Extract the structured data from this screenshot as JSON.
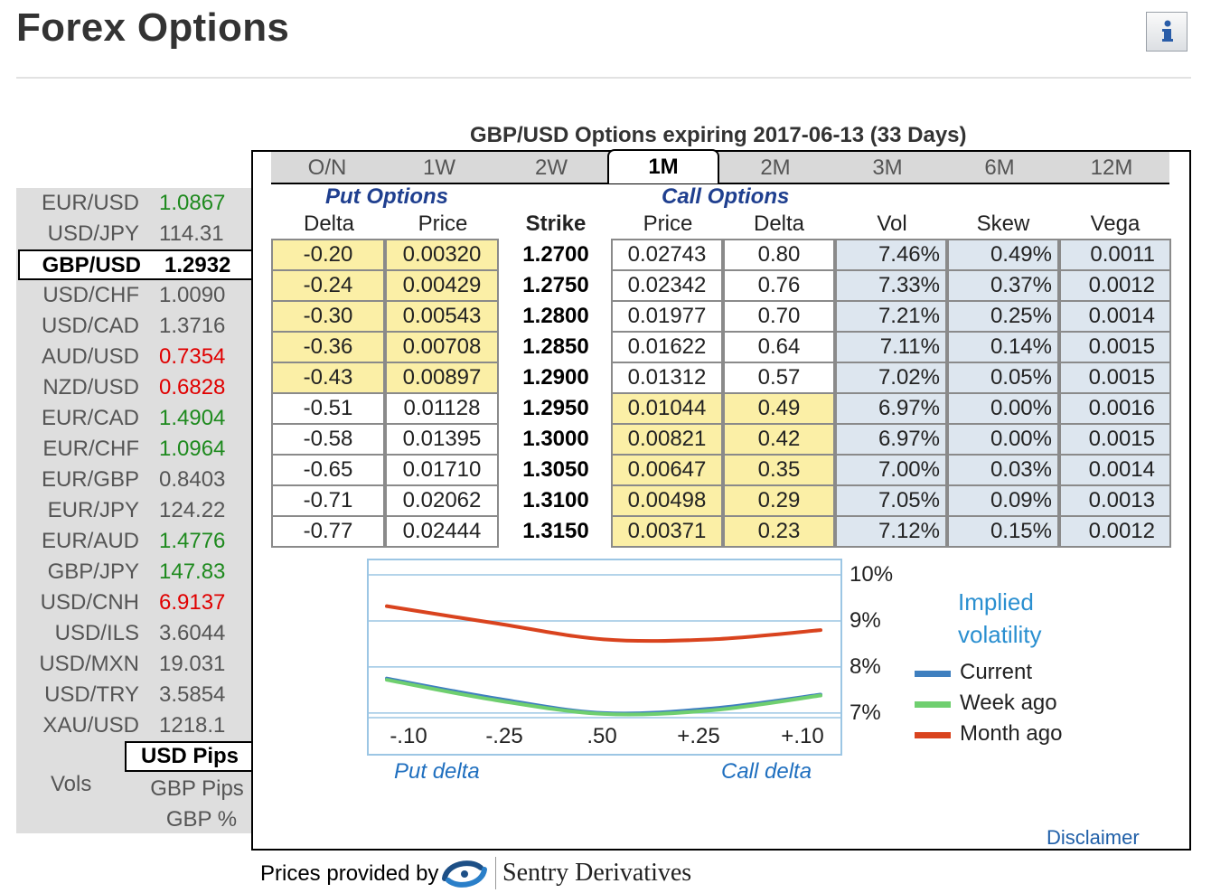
{
  "page_title": "Forex Options",
  "sidebar": {
    "pairs": [
      {
        "name": "EUR/USD",
        "value": "1.0867",
        "dir": "up"
      },
      {
        "name": "USD/JPY",
        "value": "114.31",
        "dir": "flat"
      },
      {
        "name": "GBP/USD",
        "value": "1.2932",
        "dir": "sel"
      },
      {
        "name": "USD/CHF",
        "value": "1.0090",
        "dir": "flat"
      },
      {
        "name": "USD/CAD",
        "value": "1.3716",
        "dir": "flat"
      },
      {
        "name": "AUD/USD",
        "value": "0.7354",
        "dir": "down"
      },
      {
        "name": "NZD/USD",
        "value": "0.6828",
        "dir": "down"
      },
      {
        "name": "EUR/CAD",
        "value": "1.4904",
        "dir": "up"
      },
      {
        "name": "EUR/CHF",
        "value": "1.0964",
        "dir": "up"
      },
      {
        "name": "EUR/GBP",
        "value": "0.8403",
        "dir": "flat"
      },
      {
        "name": "EUR/JPY",
        "value": "124.22",
        "dir": "flat"
      },
      {
        "name": "EUR/AUD",
        "value": "1.4776",
        "dir": "up"
      },
      {
        "name": "GBP/JPY",
        "value": "147.83",
        "dir": "up"
      },
      {
        "name": "USD/CNH",
        "value": "6.9137",
        "dir": "down"
      },
      {
        "name": "USD/ILS",
        "value": "3.6044",
        "dir": "flat"
      },
      {
        "name": "USD/MXN",
        "value": "19.031",
        "dir": "flat"
      },
      {
        "name": "USD/TRY",
        "value": "3.5854",
        "dir": "flat"
      },
      {
        "name": "XAU/USD",
        "value": "1218.1",
        "dir": "flat"
      }
    ],
    "units": [
      "USD Pips",
      "GBP Pips",
      "GBP %"
    ],
    "vols_label": "Vols"
  },
  "panel": {
    "title": "GBP/USD Options expiring 2017-06-13 (33 Days)",
    "tabs": [
      "O/N",
      "1W",
      "2W",
      "1M",
      "2M",
      "3M",
      "6M",
      "12M"
    ],
    "active_tab": "1M",
    "put_label": "Put Options",
    "call_label": "Call Options",
    "headers": {
      "delta": "Delta",
      "price": "Price",
      "strike": "Strike",
      "c_price": "Price",
      "c_delta": "Delta",
      "vol": "Vol",
      "skew": "Skew",
      "vega": "Vega"
    },
    "rows": [
      {
        "pd": "-0.20",
        "pp": "0.00320",
        "k": "1.2700",
        "cp": "0.02743",
        "cd": "0.80",
        "vol": "7.46%",
        "skew": "0.49%",
        "vega": "0.0011",
        "itm": "put"
      },
      {
        "pd": "-0.24",
        "pp": "0.00429",
        "k": "1.2750",
        "cp": "0.02342",
        "cd": "0.76",
        "vol": "7.33%",
        "skew": "0.37%",
        "vega": "0.0012",
        "itm": "put"
      },
      {
        "pd": "-0.30",
        "pp": "0.00543",
        "k": "1.2800",
        "cp": "0.01977",
        "cd": "0.70",
        "vol": "7.21%",
        "skew": "0.25%",
        "vega": "0.0014",
        "itm": "put"
      },
      {
        "pd": "-0.36",
        "pp": "0.00708",
        "k": "1.2850",
        "cp": "0.01622",
        "cd": "0.64",
        "vol": "7.11%",
        "skew": "0.14%",
        "vega": "0.0015",
        "itm": "put"
      },
      {
        "pd": "-0.43",
        "pp": "0.00897",
        "k": "1.2900",
        "cp": "0.01312",
        "cd": "0.57",
        "vol": "7.02%",
        "skew": "0.05%",
        "vega": "0.0015",
        "itm": "put"
      },
      {
        "pd": "-0.51",
        "pp": "0.01128",
        "k": "1.2950",
        "cp": "0.01044",
        "cd": "0.49",
        "vol": "6.97%",
        "skew": "0.00%",
        "vega": "0.0016",
        "itm": "call"
      },
      {
        "pd": "-0.58",
        "pp": "0.01395",
        "k": "1.3000",
        "cp": "0.00821",
        "cd": "0.42",
        "vol": "6.97%",
        "skew": "0.00%",
        "vega": "0.0015",
        "itm": "call"
      },
      {
        "pd": "-0.65",
        "pp": "0.01710",
        "k": "1.3050",
        "cp": "0.00647",
        "cd": "0.35",
        "vol": "7.00%",
        "skew": "0.03%",
        "vega": "0.0014",
        "itm": "call"
      },
      {
        "pd": "-0.71",
        "pp": "0.02062",
        "k": "1.3100",
        "cp": "0.00498",
        "cd": "0.29",
        "vol": "7.05%",
        "skew": "0.09%",
        "vega": "0.0013",
        "itm": "call"
      },
      {
        "pd": "-0.77",
        "pp": "0.02444",
        "k": "1.3150",
        "cp": "0.00371",
        "cd": "0.23",
        "vol": "7.12%",
        "skew": "0.15%",
        "vega": "0.0012",
        "itm": "call"
      }
    ]
  },
  "chart_data": {
    "type": "line",
    "title": "Implied volatility",
    "xlabel_left": "Put delta",
    "xlabel_right": "Call delta",
    "categories": [
      "-.10",
      "-.25",
      ".50",
      "+.25",
      "+.10"
    ],
    "x": [
      0,
      1,
      2,
      3,
      4
    ],
    "ylim": [
      6.9,
      10.0
    ],
    "yticks": [
      "10%",
      "9%",
      "8%",
      "7%"
    ],
    "ytick_values": [
      10,
      9,
      8,
      7
    ],
    "series": [
      {
        "name": "Current",
        "color": "#3f7fbf",
        "values": [
          7.75,
          7.32,
          7.0,
          7.1,
          7.4
        ]
      },
      {
        "name": "Week ago",
        "color": "#6fcf6f",
        "values": [
          7.72,
          7.28,
          6.98,
          7.06,
          7.38
        ]
      },
      {
        "name": "Month ago",
        "color": "#d9431e",
        "values": [
          9.32,
          8.95,
          8.6,
          8.6,
          8.8
        ]
      }
    ],
    "legend": [
      "Current",
      "Week ago",
      "Month ago"
    ]
  },
  "footer": {
    "disclaimer": "Disclaimer",
    "provided_by": "Prices provided by",
    "provider": "Sentry Derivatives"
  }
}
